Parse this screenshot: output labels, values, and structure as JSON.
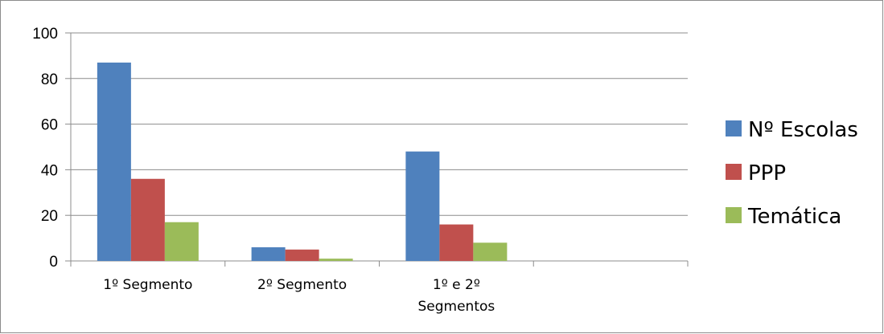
{
  "chart_data": {
    "type": "bar",
    "categories": [
      [
        "1º Segmento"
      ],
      [
        "2º Segmento"
      ],
      [
        "1º e 2º",
        "Segmentos"
      ],
      [
        ""
      ]
    ],
    "series": [
      {
        "name": "Nº Escolas",
        "color": "#4f81bd",
        "values": [
          87,
          6,
          48,
          null
        ]
      },
      {
        "name": "PPP",
        "color": "#c0504d",
        "values": [
          36,
          5,
          16,
          null
        ]
      },
      {
        "name": "Temática",
        "color": "#9bbb59",
        "values": [
          17,
          1,
          8,
          null
        ]
      }
    ],
    "y_ticks": [
      0,
      20,
      40,
      60,
      80,
      100
    ],
    "ylim": [
      0,
      100
    ],
    "grid": true,
    "legend_position": "right"
  }
}
